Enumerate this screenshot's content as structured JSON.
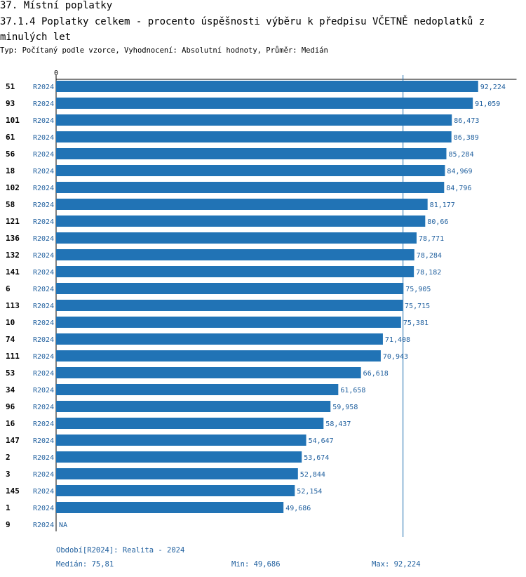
{
  "header": {
    "title": "37. Místní poplatky",
    "subtitle": "37.1.4 Poplatky celkem - procento úspěšnosti výběru k předpisu VČETNĚ nedoplatků z minulých let",
    "type_line": "Typ: Počítaný podle vzorce, Vyhodnocení: Absolutní hodnoty, Průměr: Medián"
  },
  "chart_data": {
    "type": "bar",
    "orientation": "horizontal",
    "axis_zero_label": "0",
    "xlim": [
      0,
      100
    ],
    "median_line": 75.81,
    "period_label": "R2024",
    "bar_color": "#2173b5",
    "label_color": "#1f5f9e",
    "rows": [
      {
        "id": "51",
        "period": "R2024",
        "value": 92.224,
        "label": "92,224"
      },
      {
        "id": "93",
        "period": "R2024",
        "value": 91.059,
        "label": "91,059"
      },
      {
        "id": "101",
        "period": "R2024",
        "value": 86.473,
        "label": "86,473"
      },
      {
        "id": "61",
        "period": "R2024",
        "value": 86.389,
        "label": "86,389"
      },
      {
        "id": "56",
        "period": "R2024",
        "value": 85.284,
        "label": "85,284"
      },
      {
        "id": "18",
        "period": "R2024",
        "value": 84.969,
        "label": "84,969"
      },
      {
        "id": "102",
        "period": "R2024",
        "value": 84.796,
        "label": "84,796"
      },
      {
        "id": "58",
        "period": "R2024",
        "value": 81.177,
        "label": "81,177"
      },
      {
        "id": "121",
        "period": "R2024",
        "value": 80.66,
        "label": "80,66"
      },
      {
        "id": "136",
        "period": "R2024",
        "value": 78.771,
        "label": "78,771"
      },
      {
        "id": "132",
        "period": "R2024",
        "value": 78.284,
        "label": "78,284"
      },
      {
        "id": "141",
        "period": "R2024",
        "value": 78.182,
        "label": "78,182"
      },
      {
        "id": "6",
        "period": "R2024",
        "value": 75.905,
        "label": "75,905"
      },
      {
        "id": "113",
        "period": "R2024",
        "value": 75.715,
        "label": "75,715"
      },
      {
        "id": "10",
        "period": "R2024",
        "value": 75.381,
        "label": "75,381"
      },
      {
        "id": "74",
        "period": "R2024",
        "value": 71.408,
        "label": "71,408"
      },
      {
        "id": "111",
        "period": "R2024",
        "value": 70.943,
        "label": "70,943"
      },
      {
        "id": "53",
        "period": "R2024",
        "value": 66.618,
        "label": "66,618"
      },
      {
        "id": "34",
        "period": "R2024",
        "value": 61.658,
        "label": "61,658"
      },
      {
        "id": "96",
        "period": "R2024",
        "value": 59.958,
        "label": "59,958"
      },
      {
        "id": "16",
        "period": "R2024",
        "value": 58.437,
        "label": "58,437"
      },
      {
        "id": "147",
        "period": "R2024",
        "value": 54.647,
        "label": "54,647"
      },
      {
        "id": "2",
        "period": "R2024",
        "value": 53.674,
        "label": "53,674"
      },
      {
        "id": "3",
        "period": "R2024",
        "value": 52.844,
        "label": "52,844"
      },
      {
        "id": "145",
        "period": "R2024",
        "value": 52.154,
        "label": "52,154"
      },
      {
        "id": "1",
        "period": "R2024",
        "value": 49.686,
        "label": "49,686"
      },
      {
        "id": "9",
        "period": "R2024",
        "value": null,
        "label": "NA"
      }
    ]
  },
  "footer": {
    "period_note": "Období[R2024]: Realita - 2024",
    "median": "Medián: 75,81",
    "min": "Min: 49,686",
    "max": "Max: 92,224"
  }
}
